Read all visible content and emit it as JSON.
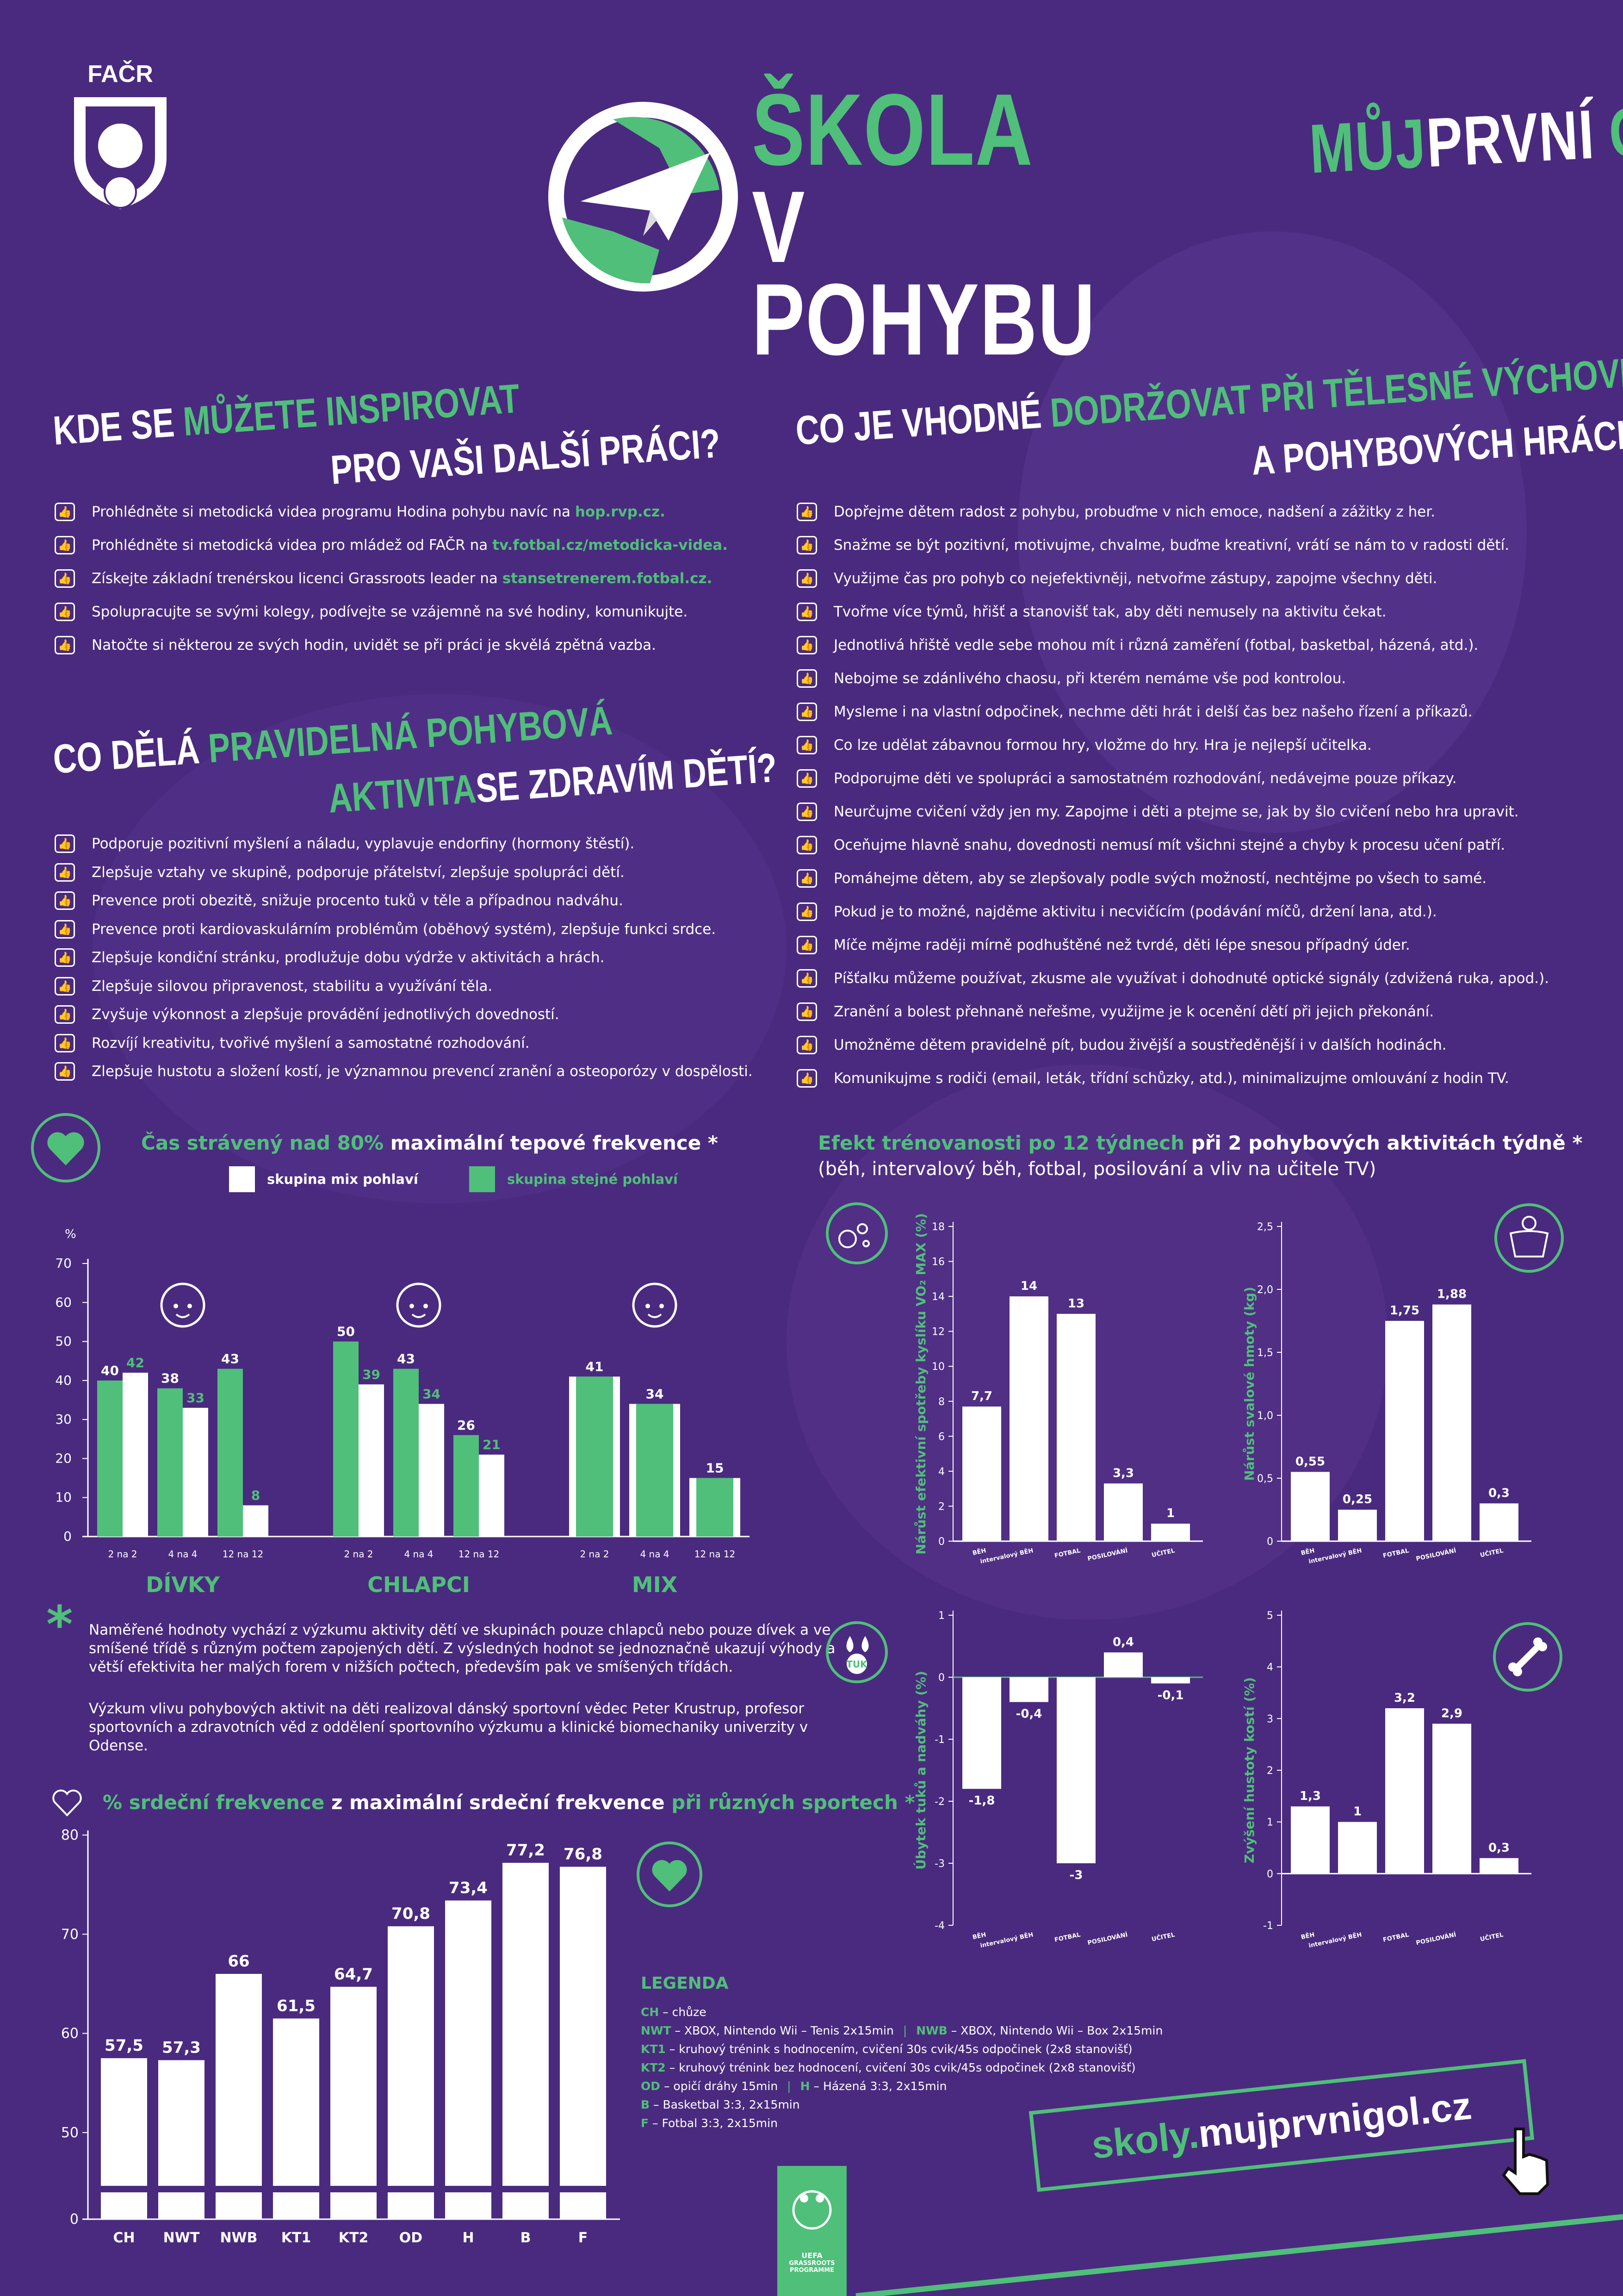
{
  "colors": {
    "background": "#4a2a7e",
    "green": "#4fbf7a",
    "white": "#ffffff"
  },
  "header": {
    "facr_logo_text": "FAČR",
    "title_line1": "ŠKOLA",
    "title_line2": "V POHYBU",
    "brand_part1": "MŮJ",
    "brand_part2": "PRVNÍ",
    "brand_part3": "GÓL"
  },
  "inspire": {
    "title_part1": "KDE SE ",
    "title_part2": "MŮŽETE INSPIROVAT",
    "title_line2": "PRO VAŠI DALŠÍ PRÁCI?",
    "items": [
      {
        "text": "Prohlédněte si metodická videa programu Hodina pohybu navíc na ",
        "link": "hop.rvp.cz."
      },
      {
        "text": "Prohlédněte si metodická videa pro mládež od FAČR na ",
        "link": "tv.fotbal.cz/metodicka-videa."
      },
      {
        "text": "Získejte základní trenérskou licenci Grassroots leader na ",
        "link": "stansetrenerem.fotbal.cz."
      },
      {
        "text": "Spolupracujte se svými kolegy, podívejte se vzájemně na své hodiny, komunikujte.",
        "link": ""
      },
      {
        "text": "Natočte si některou ze svých hodin, uvidět se při práci je skvělá zpětná vazba.",
        "link": ""
      }
    ]
  },
  "activity": {
    "title_part1": "CO DĚLÁ ",
    "title_part2": "PRAVIDELNÁ POHYBOVÁ",
    "title_line2a": "AKTIVITA",
    "title_line2b": "SE ZDRAVÍM DĚTÍ?",
    "items": [
      "Podporuje pozitivní myšlení a náladu, vyplavuje endorfiny (hormony štěstí).",
      "Zlepšuje vztahy ve skupině, podporuje přátelství, zlepšuje spolupráci dětí.",
      "Prevence proti obezitě, snižuje procento tuků v těle a případnou nadváhu.",
      "Prevence proti kardiovaskulárním problémům (oběhový systém), zlepšuje funkci srdce.",
      "Zlepšuje kondiční stránku, prodlužuje dobu výdrže v aktivitách a hrách.",
      "Zlepšuje silovou připravenost, stabilitu a využívání těla.",
      "Zvyšuje výkonnost a zlepšuje provádění jednotlivých dovedností.",
      "Rozvíjí kreativitu, tvořivé myšlení a samostatné rozhodování.",
      "Zlepšuje hustotu a složení kostí, je významnou prevencí zranění a osteoporózy v dospělosti."
    ]
  },
  "rules": {
    "title_part1": "CO JE VHODNÉ ",
    "title_part2": "DODRŽOVAT PŘI TĚLESNÉ VÝCHOVĚ",
    "title_line2": "A POHYBOVÝCH HRÁCH?",
    "items": [
      "Dopřejme dětem radost z pohybu, probuďme v nich emoce, nadšení a zážitky z her.",
      "Snažme se být pozitivní, motivujme, chvalme, buďme kreativní, vrátí se nám to v radosti dětí.",
      "Využijme čas pro pohyb co nejefektivněji, netvořme zástupy, zapojme všechny děti.",
      "Tvořme více týmů, hřišť a stanovišť tak, aby děti nemusely na aktivitu čekat.",
      "Jednotlivá hřiště vedle sebe mohou mít i různá zaměření (fotbal, basketbal, házená, atd.).",
      "Nebojme se zdánlivého chaosu, při kterém nemáme vše pod kontrolou.",
      "Mysleme i na vlastní odpočinek, nechme děti hrát i delší čas bez našeho řízení a příkazů.",
      "Co lze udělat zábavnou formou hry, vložme do hry. Hra je nejlepší učitelka.",
      "Podporujme děti ve spolupráci a samostatném rozhodování, nedávejme pouze příkazy.",
      "Neurčujme cvičení vždy jen my. Zapojme i děti a ptejme se, jak by šlo cvičení nebo hra upravit.",
      "Oceňujme hlavně snahu, dovednosti nemusí mít všichni stejné a chyby k procesu učení patří.",
      "Pomáhejme dětem, aby se zlepšovaly podle svých možností, nechtějme po všech to samé.",
      "Pokud je to možné, najděme aktivitu i necvičícím (podávání míčů, držení lana, atd.).",
      "Míče mějme raději mírně podhuštěné než tvrdé, děti lépe snesou případný úder.",
      "Píšťalku můžeme používat, zkusme ale využívat i dohodnuté optické signály (zdvižená ruka, apod.).",
      "Zranění a bolest přehnaně neřešme, využijme je k ocenění dětí při jejich překonání.",
      "Umožněme dětem pravidelně pít, budou živější a soustředěnější i v dalších hodinách.",
      "Komunikujme s rodiči (email, leták, třídní schůzky, atd.), minimalizujme omlouvání z hodin TV."
    ]
  },
  "note": {
    "asterisk": "*",
    "para1": "Naměřené hodnoty vychází z výzkumu aktivity dětí ve skupinách pouze chlapců nebo pouze dívek a ve smíšené třídě s různým počtem zapojených dětí. Z výsledných hodnot se jednoznačně ukazují výhody a větší efektivita her malých forem v nižších počtech, především pak ve smíšených třídách.",
    "para2": "Výzkum vlivu pohybových aktivit na děti realizoval dánský sportovní vědec Peter Krustrup, profesor sportovních a zdravotních věd z oddělení sportovního výzkumu a klinické biomechaniky univerzity v Odense."
  },
  "legend_box": {
    "title": "LEGENDA",
    "lines": [
      [
        {
          "code": "CH",
          "desc": " – chůze"
        }
      ],
      [
        {
          "code": "NWT",
          "desc": " – XBOX, Nintendo Wii – Tenis 2x15min"
        },
        {
          "code": "NWB",
          "desc": " – XBOX, Nintendo Wii – Box 2x15min"
        }
      ],
      [
        {
          "code": "KT1",
          "desc": " – kruhový trénink s hodnocením, cvičení 30s cvik/45s odpočinek (2x8 stanovišť)"
        }
      ],
      [
        {
          "code": "KT2",
          "desc": " – kruhový trénink bez hodnocení, cvičení 30s cvik/45s odpočinek (2x8 stanovišť)"
        }
      ],
      [
        {
          "code": "OD",
          "desc": " – opičí dráhy 15min"
        },
        {
          "code": "H",
          "desc": " – Házená 3:3, 2x15min"
        }
      ],
      [
        {
          "code": "B",
          "desc": " – Basketbal 3:3, 2x15min"
        }
      ],
      [
        {
          "code": "F",
          "desc": " – Fotbal 3:3, 2x15min"
        }
      ]
    ]
  },
  "footer": {
    "url_part1": "skoly.",
    "url_part2": "mujprvnigol.cz",
    "grassroots_label": "GRASSROOTS PROGRAMME",
    "uefa_label": "UEFA"
  },
  "chart_data": [
    {
      "id": "tepova",
      "type": "bar",
      "title_green": "Čas strávený nad 80%",
      "title_white": " maximální tepové frekvence *",
      "legend": [
        "skupina mix pohlaví",
        "skupina stejné pohlaví"
      ],
      "y_unit": "%",
      "ylim": [
        0,
        70
      ],
      "yticks": [
        0,
        10,
        20,
        30,
        40,
        50,
        60,
        70
      ],
      "groups": [
        {
          "name": "DÍVKY",
          "categories": [
            "2 na 2",
            "4 na 4",
            "12 na 12"
          ],
          "same_sex": [
            40,
            38,
            43
          ],
          "mix": [
            42,
            33,
            8
          ]
        },
        {
          "name": "CHLAPCI",
          "categories": [
            "2 na 2",
            "4 na 4",
            "12 na 12"
          ],
          "same_sex": [
            50,
            43,
            26
          ],
          "mix": [
            39,
            34,
            21
          ]
        },
        {
          "name": "MIX",
          "categories": [
            "2 na 2",
            "4 na 4",
            "12 na 12"
          ],
          "same_sex": [
            41,
            34,
            15
          ],
          "mix": [
            41,
            34,
            15
          ]
        }
      ]
    },
    {
      "id": "srdecni",
      "type": "bar",
      "title_green": "% srdeční frekvence",
      "title_white": " z maximální srdeční frekvence ",
      "title_green2": "při různých sportech *",
      "categories": [
        "CH",
        "NWT",
        "NWB",
        "KT1",
        "KT2",
        "OD",
        "H",
        "B",
        "F"
      ],
      "values": [
        57.5,
        57.3,
        66,
        61.5,
        64.7,
        70.8,
        73.4,
        77.2,
        76.8
      ],
      "value_labels": [
        "57,5",
        "57,3",
        "66",
        "61,5",
        "64,7",
        "70,8",
        "73,4",
        "77,2",
        "76,8"
      ],
      "yticks": [
        0,
        50,
        60,
        70,
        80
      ],
      "ylim_broken": [
        45,
        80
      ]
    },
    {
      "id": "trenovanost_title",
      "type": "bar",
      "title_green": "Efekt trénovanosti po 12 týdnech",
      "title_white": " při 2 pohybových aktivitách týdně *",
      "subtitle": "(běh, intervalový běh, fotbal, posilování a vliv na učitele TV)"
    },
    {
      "id": "vo2",
      "type": "bar",
      "ylabel": "Nárůst efektivní spotřeby kyslíku VO₂ MAX (%)",
      "categories": [
        "BĚH",
        "intervalový BĚH",
        "FOTBAL",
        "POSILOVÁNÍ",
        "UČITEL"
      ],
      "values": [
        7.7,
        14,
        13,
        3.3,
        1
      ],
      "value_labels": [
        "7,7",
        "14",
        "13",
        "3,3",
        "1"
      ],
      "ylim": [
        0,
        18
      ],
      "yticks": [
        0,
        2,
        4,
        6,
        8,
        10,
        12,
        14,
        16,
        18
      ]
    },
    {
      "id": "svaly",
      "type": "bar",
      "ylabel": "Nárůst svalové hmoty (kg)",
      "categories": [
        "BĚH",
        "intervalový BĚH",
        "FOTBAL",
        "POSILOVÁNÍ",
        "UČITEL"
      ],
      "values": [
        0.55,
        0.25,
        1.75,
        1.88,
        0.3
      ],
      "value_labels": [
        "0,55",
        "0,25",
        "1,75",
        "1,88",
        "0,3"
      ],
      "ylim": [
        0,
        2.5
      ],
      "yticks": [
        0,
        0.5,
        1,
        1.5,
        2,
        2.5
      ],
      "ytick_labels": [
        "0",
        "0,5",
        "1,0",
        "1,5",
        "2,0",
        "2,5"
      ]
    },
    {
      "id": "tuky",
      "type": "bar",
      "ylabel": "Úbytek tuků a nadváhy (%)",
      "icon_label": "TUK",
      "categories": [
        "BĚH",
        "intervalový BĚH",
        "FOTBAL",
        "POSILOVÁNÍ",
        "UČITEL"
      ],
      "values": [
        -1.8,
        -0.4,
        -3,
        0.4,
        -0.1
      ],
      "value_labels": [
        "-1,8",
        "-0,4",
        "-3",
        "0,4",
        "-0,1"
      ],
      "ylim": [
        -4,
        1
      ],
      "yticks": [
        -4,
        -3,
        -2,
        -1,
        0,
        1
      ]
    },
    {
      "id": "kosti",
      "type": "bar",
      "ylabel": "Zvýšení hustoty kostí (%)",
      "categories": [
        "BĚH",
        "intervalový BĚH",
        "FOTBAL",
        "POSILOVÁNÍ",
        "UČITEL"
      ],
      "values": [
        1.3,
        1,
        3.2,
        2.9,
        0.3
      ],
      "value_labels": [
        "1,3",
        "1",
        "3,2",
        "2,9",
        "0,3"
      ],
      "ylim": [
        -1,
        5
      ],
      "yticks": [
        -1,
        0,
        1,
        2,
        3,
        4,
        5
      ]
    }
  ]
}
